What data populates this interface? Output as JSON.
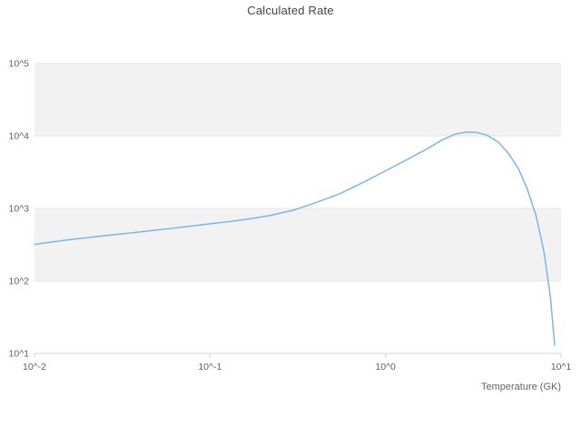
{
  "chart": {
    "title": "Calculated Rate",
    "x_axis_label": "Temperature (GK)"
  },
  "chart_data": {
    "type": "line",
    "title": "Calculated Rate",
    "xlabel": "Temperature (GK)",
    "ylabel": "",
    "x_scale": "log",
    "y_scale": "log",
    "xlim": [
      0.01,
      10
    ],
    "ylim": [
      10,
      100000
    ],
    "grid": "horizontal-only",
    "legend": "none",
    "line_color": "#7cb5ec",
    "band_color": "#f2f2f2",
    "grid_color": "#e6e6e6",
    "axis_color": "#ccd6eb",
    "x_ticks": [
      {
        "value": 0.01,
        "label": "10^-2"
      },
      {
        "value": 0.1,
        "label": "10^-1"
      },
      {
        "value": 1,
        "label": "10^0"
      },
      {
        "value": 10,
        "label": "10^1"
      }
    ],
    "y_ticks": [
      {
        "value": 10,
        "label": "10^1"
      },
      {
        "value": 100,
        "label": "10^2"
      },
      {
        "value": 1000,
        "label": "10^3"
      },
      {
        "value": 10000,
        "label": "10^4"
      },
      {
        "value": 100000,
        "label": "10^5"
      }
    ],
    "series": [
      {
        "name": "Calculated Rate",
        "x": [
          0.01,
          0.012,
          0.015,
          0.02,
          0.026,
          0.034,
          0.045,
          0.06,
          0.08,
          0.1,
          0.13,
          0.17,
          0.22,
          0.3,
          0.4,
          0.55,
          0.75,
          1.0,
          1.3,
          1.7,
          2.1,
          2.5,
          2.9,
          3.3,
          3.8,
          4.4,
          5.0,
          5.7,
          6.4,
          7.2,
          8.0,
          8.7,
          9.2
        ],
        "y": [
          320,
          340,
          365,
          395,
          425,
          455,
          490,
          530,
          575,
          615,
          660,
          720,
          800,
          950,
          1200,
          1600,
          2300,
          3300,
          4600,
          6500,
          8800,
          10600,
          11300,
          11200,
          10200,
          8200,
          5800,
          3600,
          1900,
          800,
          250,
          60,
          13
        ]
      }
    ]
  }
}
